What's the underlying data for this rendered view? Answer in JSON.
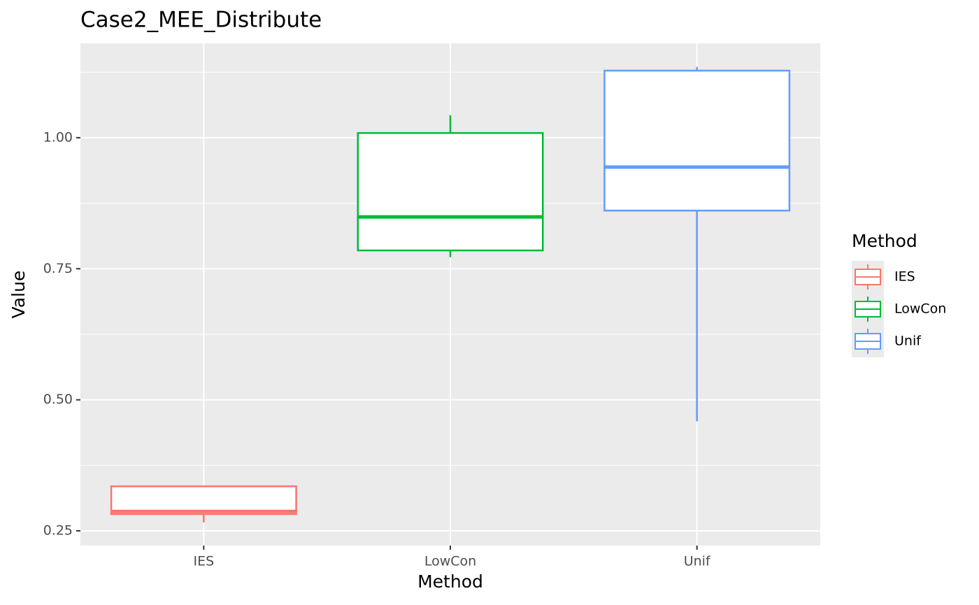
{
  "chart_data": {
    "type": "box",
    "title": "Case2_MEE_Distribute",
    "x_label": "Method",
    "y_label": "Value",
    "categories": [
      "IES",
      "LowCon",
      "Unif"
    ],
    "legend_title": "Method",
    "legend": "right",
    "series": [
      {
        "name": "IES",
        "color": "#f8766d",
        "whisker_low": 0.266,
        "q1": 0.282,
        "median": 0.287,
        "q3": 0.335,
        "whisker_high": 0.335
      },
      {
        "name": "LowCon",
        "color": "#00ba38",
        "whisker_low": 0.772,
        "q1": 0.785,
        "median": 0.849,
        "q3": 1.009,
        "whisker_high": 1.043
      },
      {
        "name": "Unif",
        "color": "#619cff",
        "whisker_low": 0.459,
        "q1": 0.861,
        "median": 0.944,
        "q3": 1.128,
        "whisker_high": 1.135
      }
    ],
    "ylim": [
      0.222,
      1.18
    ],
    "yticks": [
      {
        "value": 0.25,
        "label": "0.25"
      },
      {
        "value": 0.5,
        "label": "0.50"
      },
      {
        "value": 0.75,
        "label": "0.75"
      },
      {
        "value": 1,
        "label": "1.00"
      }
    ],
    "yminor": [
      0.375,
      0.625,
      0.875,
      1.125
    ],
    "grid": true
  }
}
